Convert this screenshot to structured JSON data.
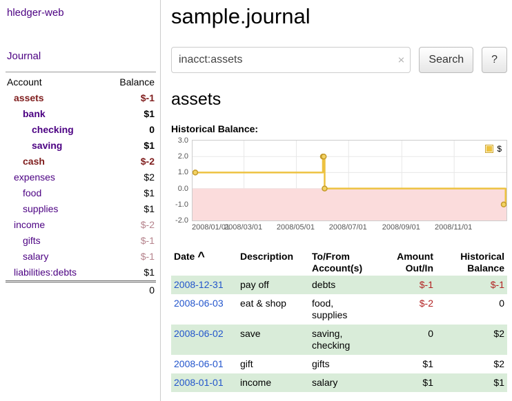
{
  "app_title": "hledger-web",
  "sidebar": {
    "journal_link": "Journal",
    "header": {
      "account": "Account",
      "balance": "Balance"
    },
    "accounts": [
      {
        "name": "assets",
        "balance": "$-1",
        "level": 0,
        "bold": true,
        "name_negative": true,
        "balance_negative": "strong"
      },
      {
        "name": "bank",
        "balance": "$1",
        "level": 1,
        "bold": true,
        "name_negative": false,
        "balance_negative": ""
      },
      {
        "name": "checking",
        "balance": "0",
        "level": 2,
        "bold": true,
        "name_negative": false,
        "balance_negative": ""
      },
      {
        "name": "saving",
        "balance": "$1",
        "level": 2,
        "bold": true,
        "name_negative": false,
        "balance_negative": ""
      },
      {
        "name": "cash",
        "balance": "$-2",
        "level": 1,
        "bold": true,
        "name_negative": true,
        "balance_negative": "strong"
      },
      {
        "name": "expenses",
        "balance": "$2",
        "level": 0,
        "bold": false,
        "name_negative": false,
        "balance_negative": ""
      },
      {
        "name": "food",
        "balance": "$1",
        "level": 1,
        "bold": false,
        "name_negative": false,
        "balance_negative": ""
      },
      {
        "name": "supplies",
        "balance": "$1",
        "level": 1,
        "bold": false,
        "name_negative": false,
        "balance_negative": ""
      },
      {
        "name": "income",
        "balance": "$-2",
        "level": 0,
        "bold": false,
        "name_negative": false,
        "balance_negative": "soft"
      },
      {
        "name": "gifts",
        "balance": "$-1",
        "level": 1,
        "bold": false,
        "name_negative": false,
        "balance_negative": "soft"
      },
      {
        "name": "salary",
        "balance": "$-1",
        "level": 1,
        "bold": false,
        "name_negative": false,
        "balance_negative": "soft"
      },
      {
        "name": "liabilities:debts",
        "balance": "$1",
        "level": 0,
        "bold": false,
        "name_negative": false,
        "balance_negative": ""
      }
    ],
    "total": "0"
  },
  "main": {
    "title": "sample.journal",
    "search": {
      "value": "inacct:assets",
      "clear_icon": "×",
      "button_label": "Search",
      "help_label": "?"
    },
    "account_heading": "assets",
    "chart_title": "Historical Balance:"
  },
  "chart_data": {
    "type": "line",
    "step": true,
    "title": "Historical Balance",
    "legend": {
      "label": "$",
      "position": "top-right"
    },
    "series": [
      {
        "name": "$",
        "color": "#edc240",
        "points": [
          {
            "date": "2008-01-01",
            "day": 0,
            "value": 1
          },
          {
            "date": "2008-06-01",
            "day": 152,
            "value": 2
          },
          {
            "date": "2008-06-02",
            "day": 153,
            "value": 2
          },
          {
            "date": "2008-06-03",
            "day": 154,
            "value": 0
          },
          {
            "date": "2008-12-31",
            "day": 365,
            "value": -1
          }
        ]
      }
    ],
    "ylim": [
      -2,
      3
    ],
    "x_domain_days": [
      0,
      366
    ],
    "y_ticks": [
      {
        "value": 3,
        "label": "3.0"
      },
      {
        "value": 2,
        "label": "2.0"
      },
      {
        "value": 1,
        "label": "1.0"
      },
      {
        "value": 0,
        "label": "0.0"
      },
      {
        "value": -1,
        "label": "-1.0"
      },
      {
        "value": -2,
        "label": "-2.0"
      }
    ],
    "x_ticks": [
      {
        "day": 0,
        "label": "2008/01/01"
      },
      {
        "day": 60,
        "label": "2008/03/01"
      },
      {
        "day": 121,
        "label": "2008/05/01"
      },
      {
        "day": 182,
        "label": "2008/07/01"
      },
      {
        "day": 244,
        "label": "2008/09/01"
      },
      {
        "day": 305,
        "label": "2008/11/01"
      }
    ],
    "negative_region_color": "#fbdcdc",
    "grid": true
  },
  "register": {
    "columns": [
      {
        "line1": "Date",
        "line2": ""
      },
      {
        "line1": "Description",
        "line2": ""
      },
      {
        "line1": "To/From",
        "line2": "Account(s)"
      },
      {
        "line1": "Amount",
        "line2": "Out/In"
      },
      {
        "line1": "Historical",
        "line2": "Balance"
      }
    ],
    "sort_indicator": "^",
    "rows": [
      {
        "date": "2008-12-31",
        "description": "pay off",
        "accounts": "debts",
        "amount": "$-1",
        "balance": "$-1"
      },
      {
        "date": "2008-06-03",
        "description": "eat & shop",
        "accounts": "food, supplies",
        "amount": "$-2",
        "balance": "0"
      },
      {
        "date": "2008-06-02",
        "description": "save",
        "accounts": "saving, checking",
        "amount": "0",
        "balance": "$2"
      },
      {
        "date": "2008-06-01",
        "description": "gift",
        "accounts": "gifts",
        "amount": "$1",
        "balance": "$2"
      },
      {
        "date": "2008-01-01",
        "description": "income",
        "accounts": "salary",
        "amount": "$1",
        "balance": "$1"
      }
    ]
  },
  "colors": {
    "link_purple": "#4b0082",
    "date_blue": "#2255cc",
    "negative_strong": "#7f1d1d",
    "negative_soft": "#b5838c",
    "negative": "#b22222",
    "row_green": "#d9ecd9",
    "chart_gold": "#edc240",
    "negative_region": "#fbdcdc"
  }
}
